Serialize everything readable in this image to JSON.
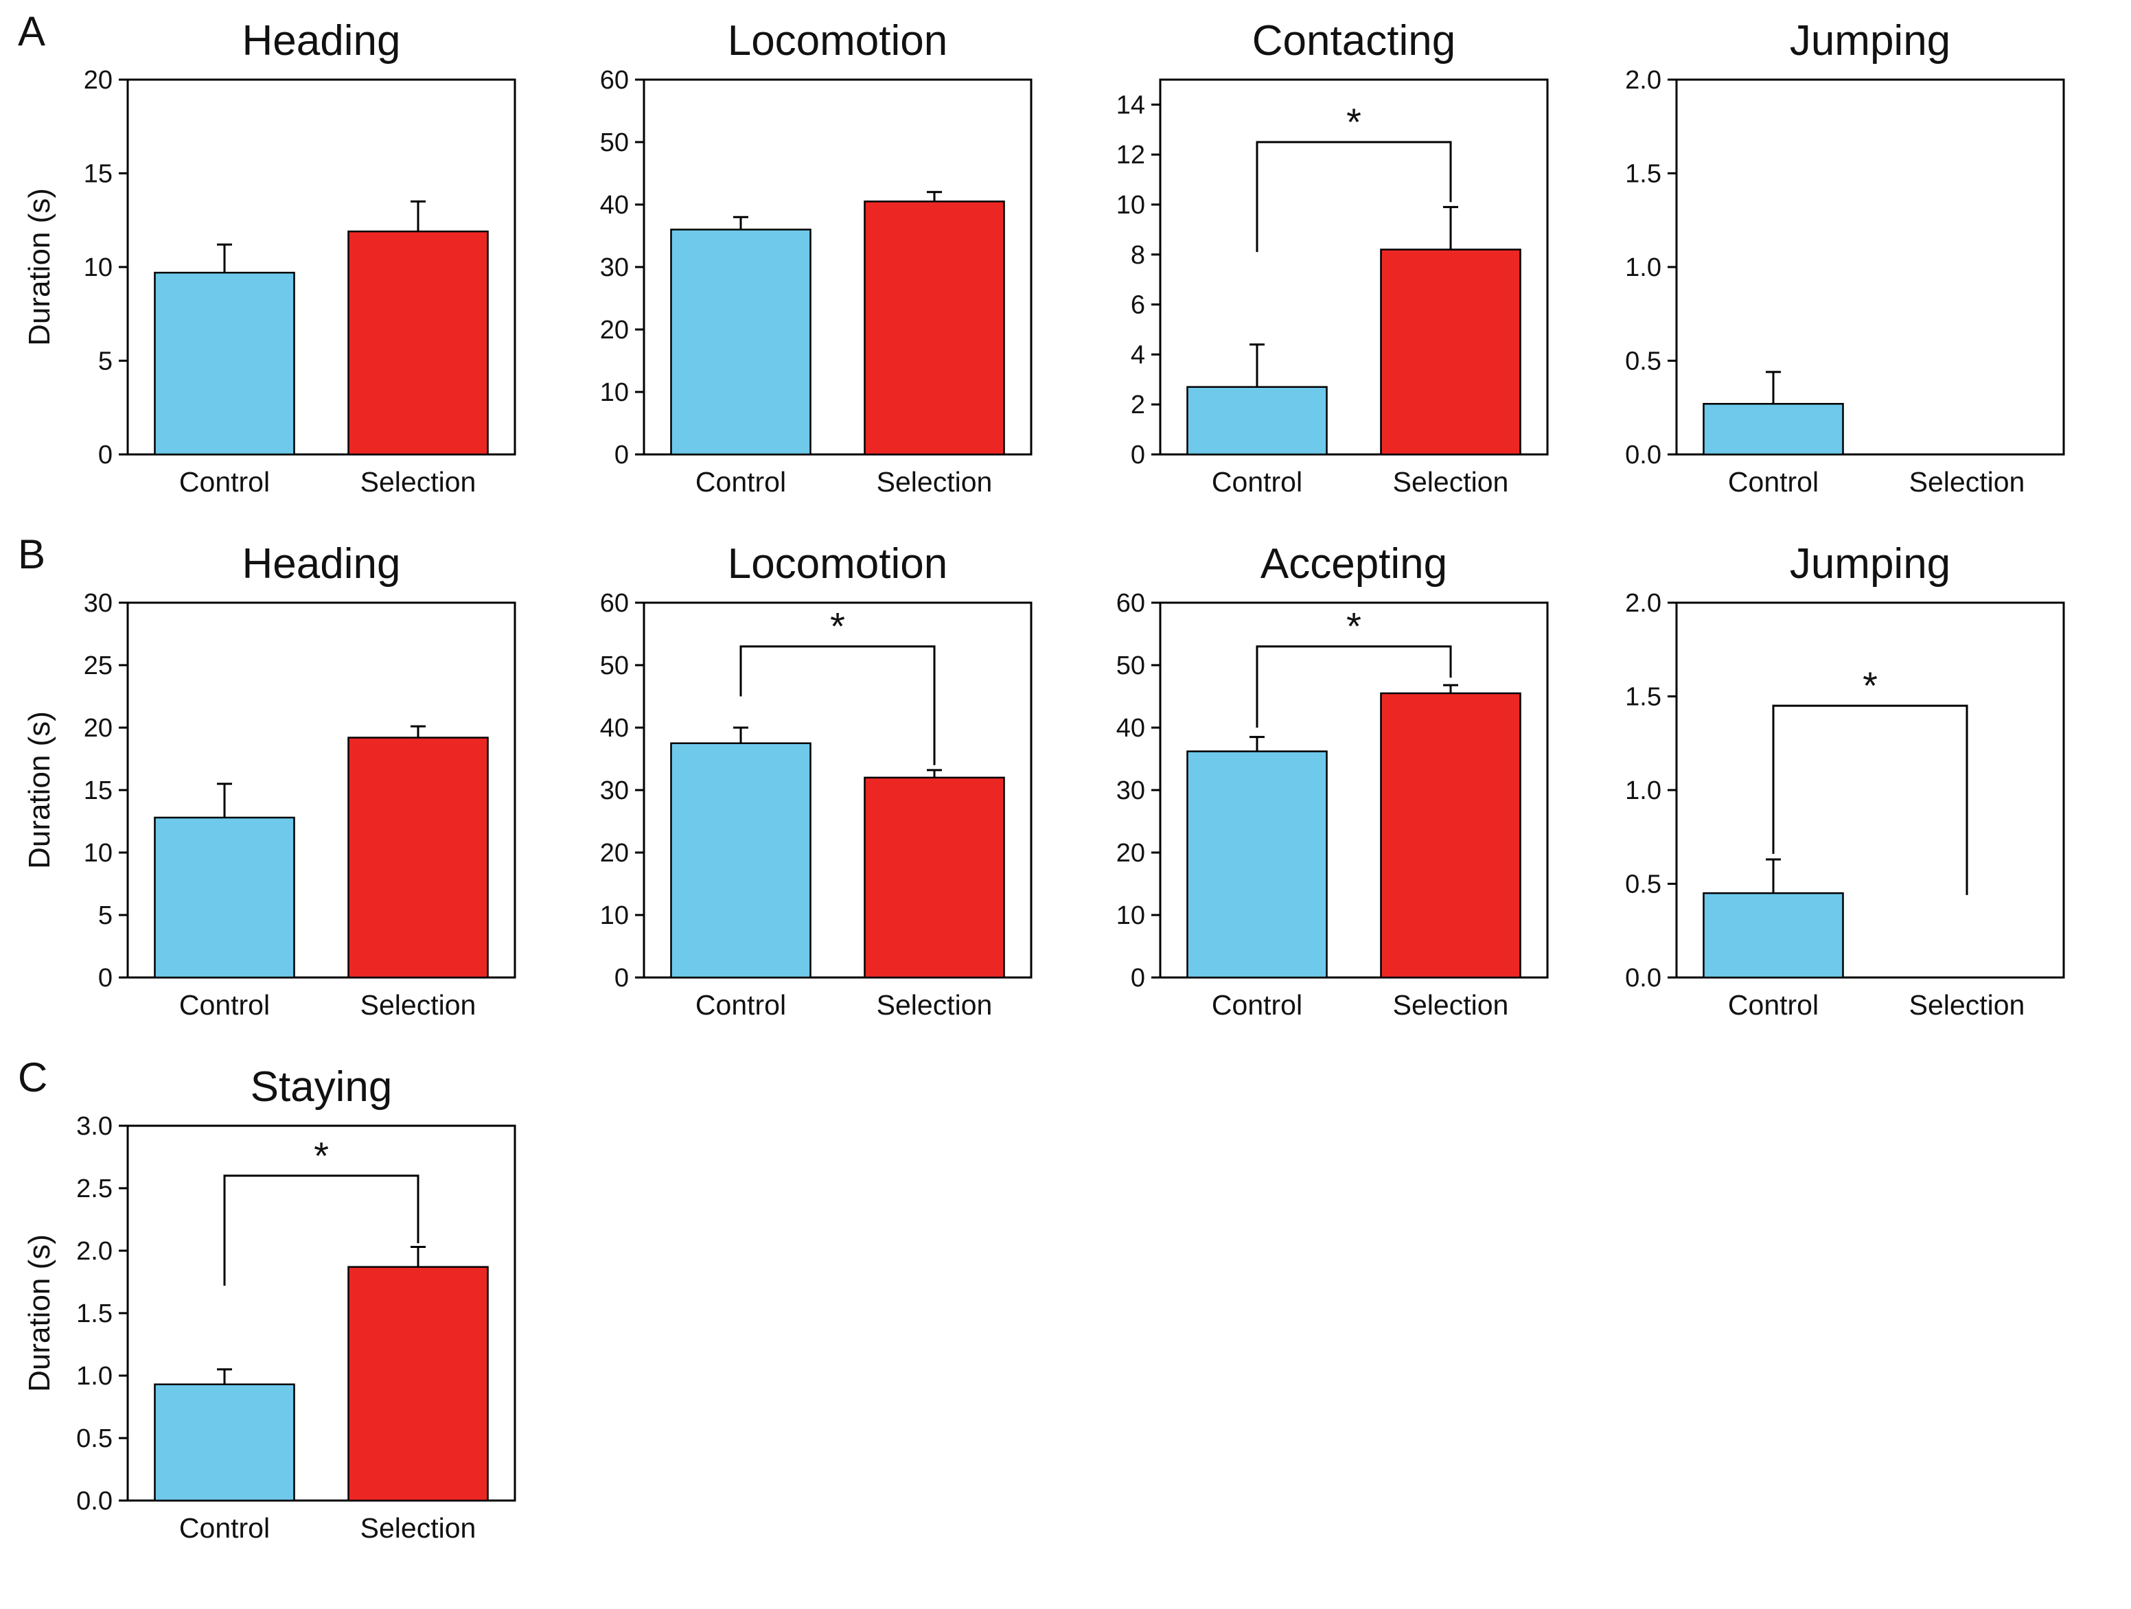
{
  "figure": {
    "panels": [
      {
        "label": "A"
      },
      {
        "label": "B"
      },
      {
        "label": "C"
      }
    ]
  },
  "colors": {
    "control": "#6EC9EB",
    "selection": "#EC2723",
    "axis": "#000000"
  },
  "chart_data": [
    {
      "type": "bar",
      "panel": "A",
      "title": "Heading",
      "categories": [
        "Control",
        "Selection"
      ],
      "values": [
        9.7,
        11.9
      ],
      "errors": [
        1.5,
        1.6
      ],
      "ylabel": "Duration (s)",
      "ylim": [
        0,
        20
      ],
      "yticks": [
        "0",
        "5",
        "10",
        "15",
        "20"
      ],
      "significance": null
    },
    {
      "type": "bar",
      "panel": "A",
      "title": "Locomotion",
      "categories": [
        "Control",
        "Selection"
      ],
      "values": [
        36,
        40.5
      ],
      "errors": [
        2,
        1.5
      ],
      "ylabel": "",
      "ylim": [
        0,
        60
      ],
      "yticks": [
        "0",
        "10",
        "20",
        "30",
        "40",
        "50",
        "60"
      ],
      "significance": null
    },
    {
      "type": "bar",
      "panel": "A",
      "title": "Contacting",
      "categories": [
        "Control",
        "Selection"
      ],
      "values": [
        2.7,
        8.2
      ],
      "errors": [
        1.7,
        1.7
      ],
      "ylabel": "",
      "ylim": [
        0,
        15
      ],
      "yticks": [
        "0",
        "2",
        "4",
        "6",
        "8",
        "10",
        "12",
        "14"
      ],
      "significance": {
        "marker": "*",
        "y_top": 12.5,
        "y_left": 8.1,
        "y_right": 10.1
      }
    },
    {
      "type": "bar",
      "panel": "A",
      "title": "Jumping",
      "categories": [
        "Control",
        "Selection"
      ],
      "values": [
        0.27,
        0
      ],
      "errors": [
        0.17,
        0
      ],
      "ylabel": "",
      "ylim": [
        0,
        2.0
      ],
      "yticks": [
        "0.0",
        "0.5",
        "1.0",
        "1.5",
        "2.0"
      ],
      "significance": null
    },
    {
      "type": "bar",
      "panel": "B",
      "title": "Heading",
      "categories": [
        "Control",
        "Selection"
      ],
      "values": [
        12.8,
        19.2
      ],
      "errors": [
        2.7,
        0.9
      ],
      "ylabel": "Duration (s)",
      "ylim": [
        0,
        30
      ],
      "yticks": [
        "0",
        "5",
        "10",
        "15",
        "20",
        "25",
        "30"
      ],
      "significance": null
    },
    {
      "type": "bar",
      "panel": "B",
      "title": "Locomotion",
      "categories": [
        "Control",
        "Selection"
      ],
      "values": [
        37.5,
        32
      ],
      "errors": [
        2.5,
        1.2
      ],
      "ylabel": "",
      "ylim": [
        0,
        60
      ],
      "yticks": [
        "0",
        "10",
        "20",
        "30",
        "40",
        "50",
        "60"
      ],
      "significance": {
        "marker": "*",
        "y_top": 53,
        "y_left": 45,
        "y_right": 34
      }
    },
    {
      "type": "bar",
      "panel": "B",
      "title": "Accepting",
      "categories": [
        "Control",
        "Selection"
      ],
      "values": [
        36.2,
        45.5
      ],
      "errors": [
        2.3,
        1.3
      ],
      "ylabel": "",
      "ylim": [
        0,
        60
      ],
      "yticks": [
        "0",
        "10",
        "20",
        "30",
        "40",
        "50",
        "60"
      ],
      "significance": {
        "marker": "*",
        "y_top": 53,
        "y_left": 40,
        "y_right": 48
      }
    },
    {
      "type": "bar",
      "panel": "B",
      "title": "Jumping",
      "categories": [
        "Control",
        "Selection"
      ],
      "values": [
        0.45,
        0
      ],
      "errors": [
        0.18,
        0
      ],
      "ylabel": "",
      "ylim": [
        0,
        2.0
      ],
      "yticks": [
        "0.0",
        "0.5",
        "1.0",
        "1.5",
        "2.0"
      ],
      "significance": {
        "marker": "*",
        "y_top": 1.45,
        "y_left": 0.66,
        "y_right": 0.44
      }
    },
    {
      "type": "bar",
      "panel": "C",
      "title": "Staying",
      "categories": [
        "Control",
        "Selection"
      ],
      "values": [
        0.93,
        1.87
      ],
      "errors": [
        0.12,
        0.16
      ],
      "ylabel": "Duration (s)",
      "ylim": [
        0,
        3.0
      ],
      "yticks": [
        "0.0",
        "0.5",
        "1.0",
        "1.5",
        "2.0",
        "2.5",
        "3.0"
      ],
      "significance": {
        "marker": "*",
        "y_top": 2.6,
        "y_left": 1.72,
        "y_right": 2.06
      }
    }
  ]
}
